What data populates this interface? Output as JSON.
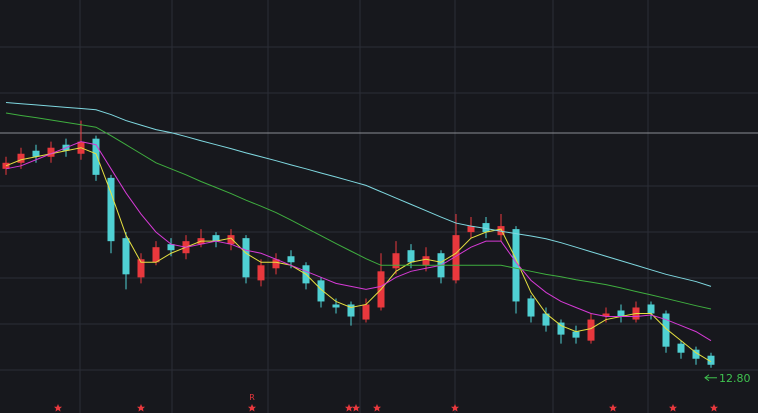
{
  "chart_data": {
    "type": "candlestick",
    "ylim": [
      11.3,
      25.0
    ],
    "up_color": "#e8383d",
    "down_color": "#4fd0d3",
    "open": [
      19.4,
      19.6,
      20.0,
      19.8,
      20.2,
      19.9,
      20.4,
      19.1,
      17.1,
      15.8,
      16.3,
      16.9,
      16.6,
      16.9,
      17.2,
      16.9,
      17.1,
      15.7,
      16.1,
      16.5,
      16.2,
      15.7,
      14.9,
      14.9,
      14.4,
      14.8,
      16.1,
      16.7,
      16.2,
      16.6,
      15.7,
      17.3,
      17.6,
      17.2,
      17.4,
      15.1,
      14.6,
      14.3,
      14.0,
      13.7,
      14.5,
      14.7,
      14.4,
      14.9,
      14.6,
      13.6,
      13.4,
      13.2
    ],
    "high": [
      19.8,
      20.1,
      20.2,
      20.3,
      20.4,
      21.0,
      20.5,
      19.2,
      17.3,
      16.6,
      17.0,
      17.1,
      17.2,
      17.4,
      17.3,
      17.4,
      17.2,
      16.4,
      16.6,
      16.7,
      16.3,
      15.8,
      15.1,
      15.0,
      15.1,
      16.6,
      17.0,
      16.9,
      16.8,
      16.7,
      17.9,
      17.8,
      17.8,
      17.9,
      17.5,
      15.2,
      14.8,
      14.4,
      14.2,
      14.6,
      14.8,
      14.9,
      15.0,
      15.0,
      14.7,
      13.7,
      13.5,
      13.3
    ],
    "low": [
      19.2,
      19.4,
      19.6,
      19.6,
      19.8,
      19.7,
      19.0,
      16.6,
      15.4,
      15.6,
      16.2,
      16.5,
      16.4,
      16.8,
      16.8,
      16.7,
      15.6,
      15.5,
      15.9,
      16.1,
      15.4,
      14.8,
      14.6,
      14.2,
      14.3,
      14.7,
      15.9,
      16.1,
      16.0,
      15.6,
      15.6,
      17.1,
      17.1,
      17.0,
      14.6,
      14.3,
      14.0,
      13.6,
      13.6,
      13.6,
      14.3,
      14.3,
      14.3,
      14.4,
      13.3,
      13.1,
      12.9,
      12.8
    ],
    "close": [
      19.6,
      19.9,
      19.8,
      20.1,
      20.0,
      20.3,
      19.2,
      17.0,
      15.9,
      16.4,
      16.8,
      16.7,
      17.0,
      17.1,
      17.0,
      17.2,
      15.8,
      16.2,
      16.4,
      16.3,
      15.6,
      15.0,
      14.8,
      14.5,
      14.9,
      16.0,
      16.6,
      16.3,
      16.5,
      15.8,
      17.2,
      17.5,
      17.3,
      17.5,
      15.0,
      14.5,
      14.2,
      13.9,
      13.8,
      14.4,
      14.6,
      14.5,
      14.8,
      14.6,
      13.5,
      13.3,
      13.1,
      12.9
    ],
    "series": [
      {
        "color": "#e6e040",
        "values": [
          19.5,
          19.7,
          19.8,
          19.9,
          20.0,
          20.1,
          19.9,
          18.6,
          17.2,
          16.3,
          16.3,
          16.6,
          16.8,
          17.0,
          17.0,
          17.1,
          16.6,
          16.3,
          16.3,
          16.2,
          15.9,
          15.4,
          15.0,
          14.8,
          14.9,
          15.4,
          16.0,
          16.3,
          16.4,
          16.3,
          16.6,
          17.1,
          17.3,
          17.4,
          16.4,
          15.3,
          14.6,
          14.2,
          14.0,
          14.1,
          14.4,
          14.5,
          14.6,
          14.6,
          14.1,
          13.7,
          13.3,
          13.0
        ]
      },
      {
        "color": "#d63ad6",
        "values": [
          19.4,
          19.5,
          19.7,
          19.9,
          20.1,
          20.3,
          20.2,
          19.4,
          18.6,
          17.9,
          17.3,
          16.9,
          16.8,
          16.9,
          17.0,
          16.9,
          16.7,
          16.6,
          16.4,
          16.2,
          16.0,
          15.8,
          15.6,
          15.5,
          15.4,
          15.5,
          15.8,
          16.0,
          16.1,
          16.2,
          16.5,
          16.8,
          17.0,
          17.0,
          16.3,
          15.7,
          15.3,
          15.0,
          14.8,
          14.6,
          14.5,
          14.5,
          14.5,
          14.55,
          14.4,
          14.2,
          14.0,
          13.7
        ]
      },
      {
        "color": "#3fae3f",
        "values": [
          21.25,
          21.17,
          21.1,
          21.02,
          20.94,
          20.86,
          20.78,
          20.5,
          20.2,
          19.9,
          19.6,
          19.4,
          19.2,
          18.98,
          18.78,
          18.58,
          18.36,
          18.16,
          17.95,
          17.7,
          17.44,
          17.18,
          16.92,
          16.67,
          16.42,
          16.2,
          16.2,
          16.2,
          16.2,
          16.2,
          16.2,
          16.2,
          16.2,
          16.2,
          16.1,
          16.0,
          15.9,
          15.82,
          15.72,
          15.64,
          15.56,
          15.45,
          15.33,
          15.22,
          15.1,
          14.98,
          14.86,
          14.75
        ]
      },
      {
        "color": "#7fd8e0",
        "values": [
          21.6,
          21.56,
          21.52,
          21.48,
          21.44,
          21.4,
          21.36,
          21.2,
          21.0,
          20.85,
          20.7,
          20.6,
          20.47,
          20.33,
          20.2,
          20.07,
          19.93,
          19.8,
          19.67,
          19.53,
          19.4,
          19.26,
          19.13,
          18.99,
          18.85,
          18.64,
          18.43,
          18.22,
          18.01,
          17.8,
          17.6,
          17.5,
          17.42,
          17.33,
          17.25,
          17.17,
          17.08,
          16.95,
          16.8,
          16.65,
          16.5,
          16.35,
          16.2,
          16.05,
          15.9,
          15.78,
          15.66,
          15.5
        ]
      }
    ],
    "low_marker": {
      "value": 12.8,
      "label": "12.80",
      "color": "#3fc24f"
    },
    "event_label": "R"
  }
}
